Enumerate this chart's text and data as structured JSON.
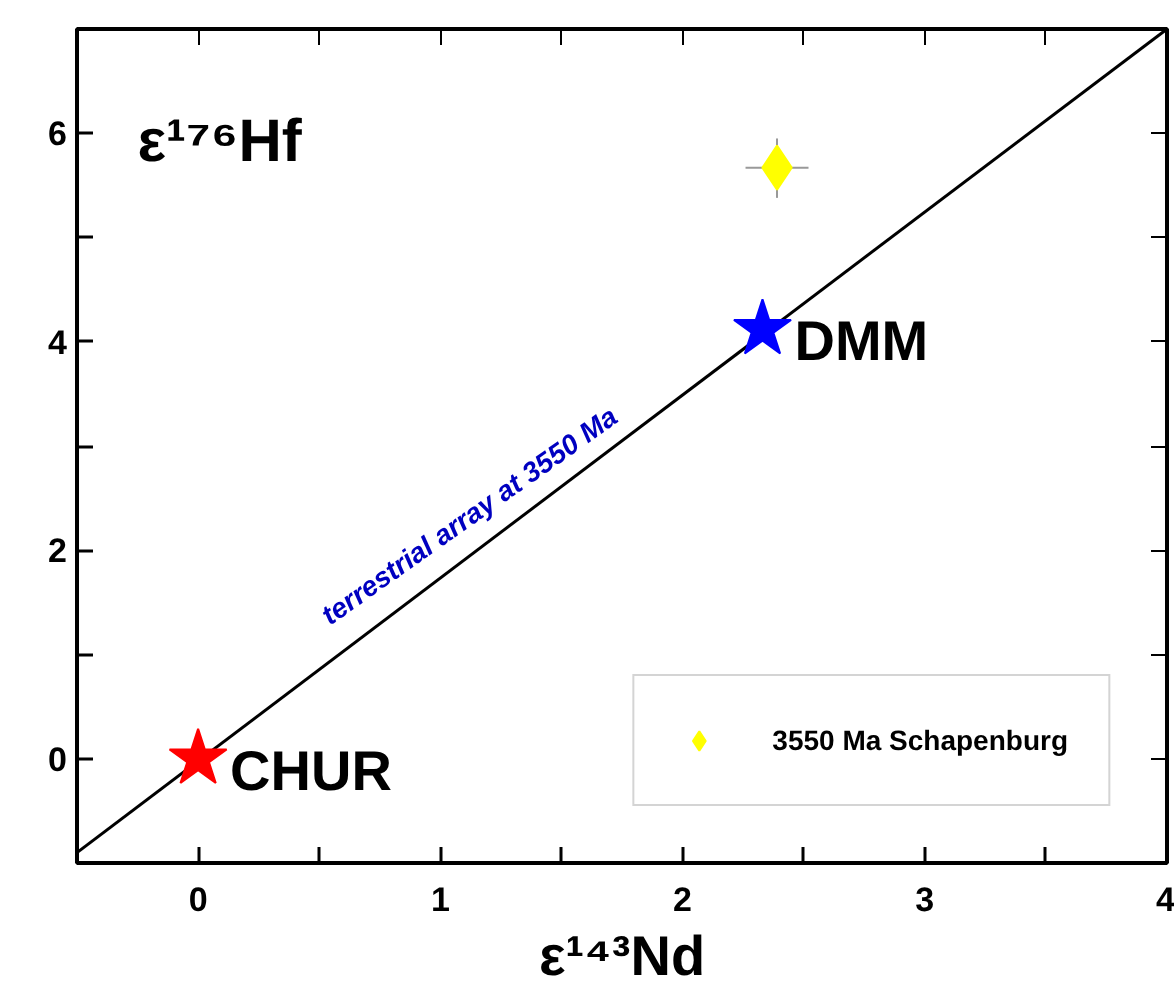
{
  "chart_data": {
    "type": "scatter",
    "xlabel": "ε¹⁴³Nd",
    "ylabel": "ε¹⁷⁶Hf",
    "xlim": [
      -0.5,
      4
    ],
    "ylim": [
      -1,
      7
    ],
    "xticks": [
      0,
      {
        "value": 0.5,
        "label": null
      },
      1,
      {
        "value": 1.5,
        "label": null
      },
      2,
      {
        "value": 2.5,
        "label": null
      },
      3,
      {
        "value": 3.5,
        "label": null
      },
      4
    ],
    "yticks": [
      {
        "value": -1,
        "label": null
      },
      0,
      {
        "value": 1,
        "label": null
      },
      2,
      {
        "value": 3,
        "label": null
      },
      4,
      {
        "value": 5,
        "label": null
      },
      6
    ],
    "annotations": [
      {
        "text": "CHUR",
        "x": 0,
        "y": 0
      },
      {
        "text": "DMM",
        "x": 2.33,
        "y": 4.12
      }
    ],
    "grid": false,
    "legend": "bottom right",
    "series": [
      {
        "type": "line",
        "name": "terrestrial array at 3550 Ma",
        "color": "#000000",
        "x": [
          -0.5,
          4
        ],
        "values": [
          -0.9,
          7
        ],
        "marker": "none"
      },
      {
        "color": "#ff0000",
        "x": [
          0
        ],
        "values": [
          0
        ],
        "marker": "star"
      },
      {
        "color": "#0000ff",
        "x": [
          2.33
        ],
        "values": [
          4.12
        ],
        "marker": "star"
      },
      {
        "name": "3550 Ma Schapenburg",
        "color": "#ffff00",
        "x": [
          2.39
        ],
        "values": [
          5.67
        ],
        "marker": "diamond",
        "errors": [
          [
            5.38,
            5.95
          ]
        ],
        "xerrors": [
          [
            2.26,
            2.52
          ]
        ]
      }
    ]
  }
}
